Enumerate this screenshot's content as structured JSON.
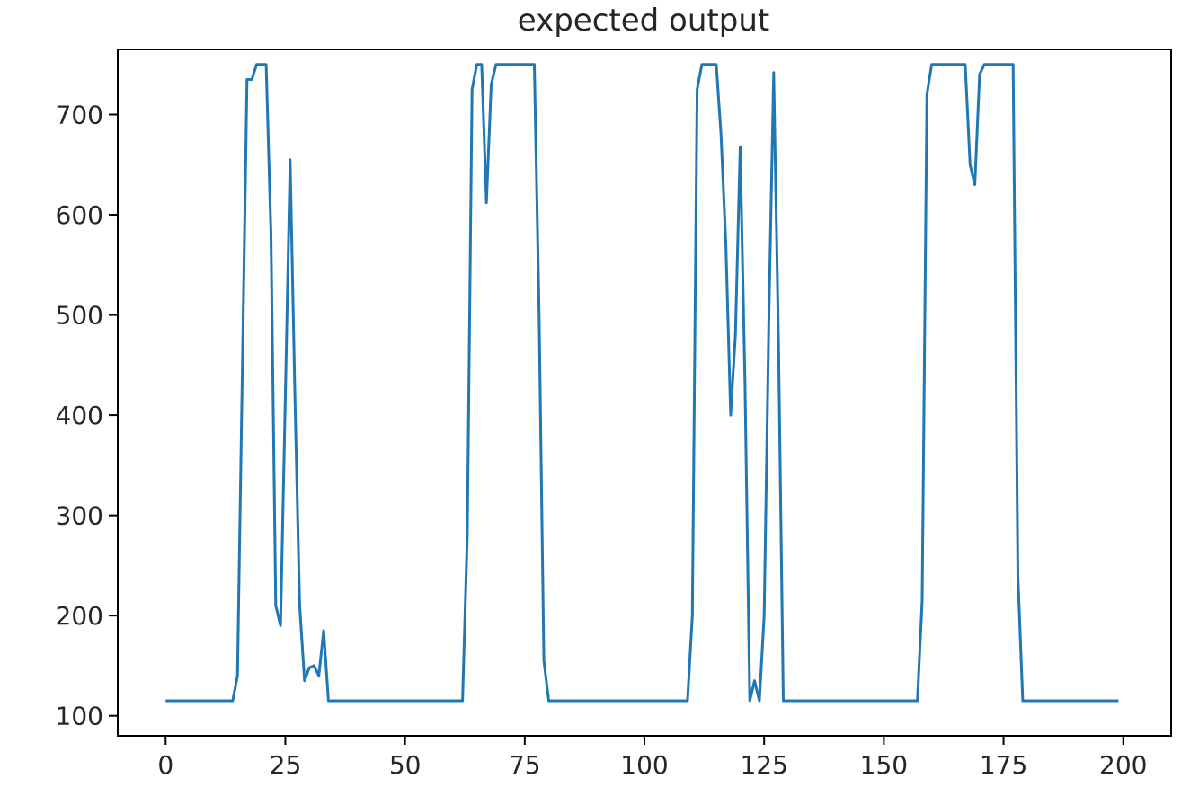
{
  "chart_data": {
    "type": "line",
    "title": "expected output",
    "xlabel": "",
    "ylabel": "",
    "xlim": [
      -10,
      210
    ],
    "ylim": [
      80,
      765
    ],
    "xticks": [
      0,
      25,
      50,
      75,
      100,
      125,
      150,
      175,
      200
    ],
    "yticks": [
      100,
      200,
      300,
      400,
      500,
      600,
      700
    ],
    "grid": false,
    "line_color": "#1f77b4",
    "series": [
      {
        "x": [
          0,
          14,
          15,
          17,
          18,
          19,
          20,
          21,
          22,
          23,
          24,
          25,
          26,
          27,
          28,
          29,
          30,
          31,
          32,
          33,
          34,
          62,
          63,
          64,
          65,
          66,
          67,
          68,
          69,
          70,
          77,
          78,
          79,
          80,
          109,
          110,
          111,
          112,
          113,
          115,
          116,
          117,
          118,
          119,
          120,
          121,
          122,
          123,
          124,
          125,
          126,
          127,
          128,
          129,
          130,
          157,
          158,
          159,
          160,
          167,
          168,
          169,
          170,
          171,
          177,
          178,
          179,
          199
        ],
        "y": [
          115,
          115,
          140,
          735,
          735,
          750,
          750,
          750,
          580,
          210,
          190,
          420,
          655,
          420,
          210,
          135,
          148,
          150,
          140,
          185,
          115,
          115,
          280,
          725,
          750,
          750,
          612,
          730,
          750,
          750,
          750,
          500,
          155,
          115,
          115,
          200,
          725,
          750,
          750,
          750,
          680,
          570,
          400,
          480,
          668,
          430,
          115,
          135,
          115,
          200,
          500,
          742,
          470,
          115,
          115,
          115,
          215,
          720,
          750,
          750,
          650,
          630,
          740,
          750,
          750,
          240,
          115,
          115
        ]
      }
    ]
  }
}
